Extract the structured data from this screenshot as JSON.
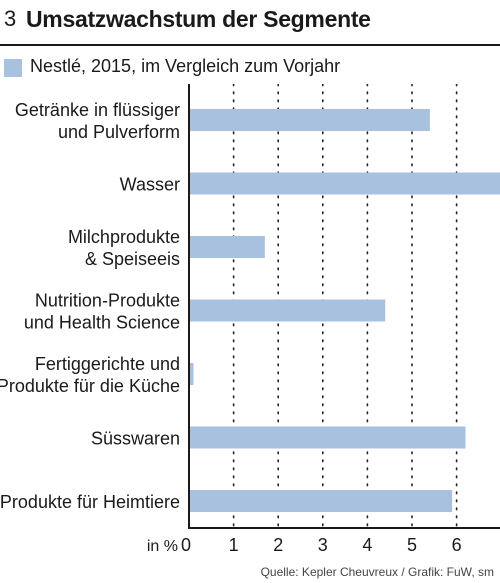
{
  "header": {
    "number": "3",
    "title": "Umsatzwachstum der Segmente"
  },
  "legend": {
    "label": "Nestlé, 2015, im Vergleich zum Vorjahr"
  },
  "source": "Quelle: Kepler Cheuvreux / Grafik: FuW, sm",
  "chart_data": {
    "type": "bar",
    "orientation": "horizontal",
    "categories": [
      [
        "Getränke in flüssiger",
        "und Pulverform"
      ],
      [
        "Wasser"
      ],
      [
        "Milchprodukte",
        "& Speiseeis"
      ],
      [
        "Nutrition-Produkte",
        "und Health Science"
      ],
      [
        "Fertiggerichte und",
        "Produkte für die Küche"
      ],
      [
        "Süsswaren"
      ],
      [
        "Produkte für Heimtiere"
      ]
    ],
    "series": [
      {
        "name": "Nestlé, 2015, im Vergleich zum Vorjahr",
        "values": [
          5.4,
          7.0,
          1.7,
          4.4,
          0.1,
          6.2,
          5.9
        ]
      }
    ],
    "xlabel": "in %",
    "xlim": [
      0,
      7
    ],
    "xticks": [
      "0",
      "1",
      "2",
      "3",
      "4",
      "5",
      "6"
    ],
    "grid": "vertical dotted",
    "color": "#a8c1de"
  }
}
